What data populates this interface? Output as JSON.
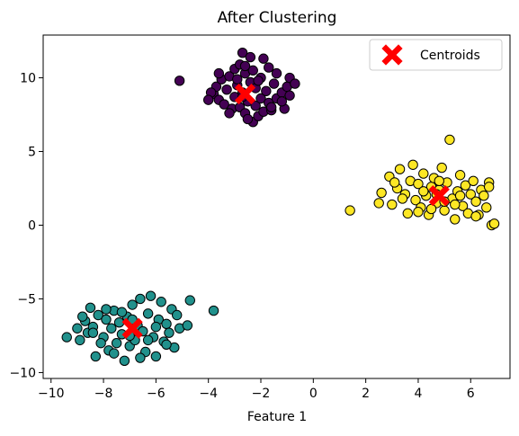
{
  "chart_data": {
    "type": "scatter",
    "title": "After Clustering",
    "xlabel": "Feature 1",
    "ylabel": "",
    "xlim": [
      -10.3,
      7.5
    ],
    "ylim": [
      -10.4,
      12.9
    ],
    "xticks": [
      -10,
      -8,
      -6,
      -4,
      -2,
      0,
      2,
      4,
      6
    ],
    "yticks": [
      -10,
      -5,
      0,
      5,
      10
    ],
    "grid": false,
    "legend": {
      "placement": "top-right",
      "entries": [
        "Centroids"
      ]
    },
    "clusters": [
      {
        "color": "#440154",
        "points": [
          [
            -5.1,
            9.8
          ],
          [
            -3.8,
            8.9
          ],
          [
            -3.7,
            9.4
          ],
          [
            -3.6,
            8.5
          ],
          [
            -3.5,
            9.9
          ],
          [
            -3.4,
            8.2
          ],
          [
            -3.3,
            9.2
          ],
          [
            -3.2,
            10.1
          ],
          [
            -3.1,
            7.9
          ],
          [
            -3.0,
            8.7
          ],
          [
            -3.0,
            10.6
          ],
          [
            -2.9,
            9.5
          ],
          [
            -2.8,
            8.0
          ],
          [
            -2.8,
            10.9
          ],
          [
            -2.7,
            11.7
          ],
          [
            -2.7,
            9.0
          ],
          [
            -2.6,
            7.6
          ],
          [
            -2.6,
            10.3
          ],
          [
            -2.5,
            8.4
          ],
          [
            -2.4,
            11.4
          ],
          [
            -2.4,
            9.7
          ],
          [
            -2.3,
            7.0
          ],
          [
            -2.3,
            10.5
          ],
          [
            -2.2,
            8.1
          ],
          [
            -2.2,
            9.3
          ],
          [
            -2.1,
            7.4
          ],
          [
            -2.0,
            10.0
          ],
          [
            -2.0,
            8.6
          ],
          [
            -1.9,
            11.3
          ],
          [
            -1.9,
            7.7
          ],
          [
            -1.8,
            9.1
          ],
          [
            -1.7,
            10.7
          ],
          [
            -1.7,
            8.3
          ],
          [
            -1.6,
            7.8
          ],
          [
            -1.5,
            9.6
          ],
          [
            -1.4,
            10.3
          ],
          [
            -1.4,
            8.6
          ],
          [
            -1.2,
            9.0
          ],
          [
            -1.1,
            7.9
          ],
          [
            -1.0,
            9.4
          ],
          [
            -0.9,
            10.0
          ],
          [
            -0.9,
            8.8
          ],
          [
            -0.7,
            9.6
          ],
          [
            -2.6,
            10.8
          ],
          [
            -3.2,
            7.6
          ],
          [
            -2.5,
            7.2
          ],
          [
            -1.6,
            8.0
          ],
          [
            -3.9,
            9.0
          ],
          [
            -4.0,
            8.5
          ],
          [
            -2.9,
            9.9
          ],
          [
            -2.1,
            9.8
          ],
          [
            -1.2,
            8.4
          ],
          [
            -3.6,
            10.3
          ],
          [
            -2.7,
            8.7
          ]
        ]
      },
      {
        "color": "#21918c",
        "points": [
          [
            -9.4,
            -7.6
          ],
          [
            -9.0,
            -7.0
          ],
          [
            -8.9,
            -7.8
          ],
          [
            -8.7,
            -6.5
          ],
          [
            -8.6,
            -7.3
          ],
          [
            -8.5,
            -5.6
          ],
          [
            -8.4,
            -6.9
          ],
          [
            -8.3,
            -8.9
          ],
          [
            -8.2,
            -6.1
          ],
          [
            -8.0,
            -7.6
          ],
          [
            -7.9,
            -6.4
          ],
          [
            -7.8,
            -8.5
          ],
          [
            -7.7,
            -7.0
          ],
          [
            -7.6,
            -5.8
          ],
          [
            -7.5,
            -8.0
          ],
          [
            -7.4,
            -6.6
          ],
          [
            -7.3,
            -7.4
          ],
          [
            -7.2,
            -9.2
          ],
          [
            -7.1,
            -6.2
          ],
          [
            -7.0,
            -8.2
          ],
          [
            -6.9,
            -5.4
          ],
          [
            -6.8,
            -7.8
          ],
          [
            -6.7,
            -6.8
          ],
          [
            -6.6,
            -5.0
          ],
          [
            -6.5,
            -7.2
          ],
          [
            -6.4,
            -8.6
          ],
          [
            -6.3,
            -6.0
          ],
          [
            -6.2,
            -4.8
          ],
          [
            -6.1,
            -7.6
          ],
          [
            -6.0,
            -8.9
          ],
          [
            -5.9,
            -6.4
          ],
          [
            -5.8,
            -5.2
          ],
          [
            -5.7,
            -7.9
          ],
          [
            -5.6,
            -6.7
          ],
          [
            -5.5,
            -7.3
          ],
          [
            -5.4,
            -5.7
          ],
          [
            -5.3,
            -8.3
          ],
          [
            -5.2,
            -6.1
          ],
          [
            -5.1,
            -7.0
          ],
          [
            -4.8,
            -6.8
          ],
          [
            -4.7,
            -5.1
          ],
          [
            -3.8,
            -5.8
          ],
          [
            -8.1,
            -8.0
          ],
          [
            -7.6,
            -8.7
          ],
          [
            -6.6,
            -9.0
          ],
          [
            -8.8,
            -6.2
          ],
          [
            -7.3,
            -5.9
          ],
          [
            -6.0,
            -6.9
          ],
          [
            -5.6,
            -8.1
          ],
          [
            -6.9,
            -6.4
          ],
          [
            -8.4,
            -7.3
          ],
          [
            -7.9,
            -5.7
          ],
          [
            -6.3,
            -7.8
          ],
          [
            -7.0,
            -7.5
          ]
        ]
      },
      {
        "color": "#fde725",
        "points": [
          [
            1.4,
            1.0
          ],
          [
            2.5,
            1.5
          ],
          [
            2.6,
            2.2
          ],
          [
            2.9,
            3.3
          ],
          [
            3.0,
            1.4
          ],
          [
            3.2,
            2.5
          ],
          [
            3.3,
            3.8
          ],
          [
            3.5,
            2.1
          ],
          [
            3.6,
            0.8
          ],
          [
            3.7,
            3.0
          ],
          [
            3.8,
            4.1
          ],
          [
            3.9,
            1.7
          ],
          [
            4.0,
            2.8
          ],
          [
            4.1,
            1.2
          ],
          [
            4.2,
            3.5
          ],
          [
            4.3,
            2.0
          ],
          [
            4.4,
            0.7
          ],
          [
            4.5,
            2.6
          ],
          [
            4.6,
            3.2
          ],
          [
            4.7,
            1.5
          ],
          [
            4.8,
            2.4
          ],
          [
            4.9,
            3.9
          ],
          [
            5.0,
            1.0
          ],
          [
            5.1,
            2.9
          ],
          [
            5.2,
            5.8
          ],
          [
            5.3,
            1.8
          ],
          [
            5.4,
            0.4
          ],
          [
            5.5,
            2.3
          ],
          [
            5.6,
            3.4
          ],
          [
            5.7,
            1.3
          ],
          [
            5.8,
            2.7
          ],
          [
            5.9,
            0.8
          ],
          [
            6.0,
            2.1
          ],
          [
            6.1,
            3.0
          ],
          [
            6.2,
            1.6
          ],
          [
            6.3,
            0.7
          ],
          [
            6.4,
            2.4
          ],
          [
            6.6,
            1.2
          ],
          [
            6.7,
            2.9
          ],
          [
            6.8,
            0.0
          ],
          [
            6.9,
            0.1
          ],
          [
            6.7,
            2.6
          ],
          [
            4.5,
            1.1
          ],
          [
            5.6,
            2.0
          ],
          [
            3.4,
            1.8
          ],
          [
            4.2,
            2.3
          ],
          [
            5.0,
            1.6
          ],
          [
            4.8,
            3.0
          ],
          [
            6.2,
            0.6
          ],
          [
            3.1,
            2.9
          ],
          [
            4.0,
            0.9
          ],
          [
            5.4,
            1.4
          ],
          [
            6.5,
            2.0
          ],
          [
            4.7,
            2.1
          ]
        ]
      }
    ],
    "centroids": {
      "name": "Centroids",
      "color": "#ff0000",
      "points": [
        [
          -2.6,
          8.9
        ],
        [
          -6.9,
          -7.0
        ],
        [
          4.8,
          2.0
        ]
      ]
    }
  }
}
